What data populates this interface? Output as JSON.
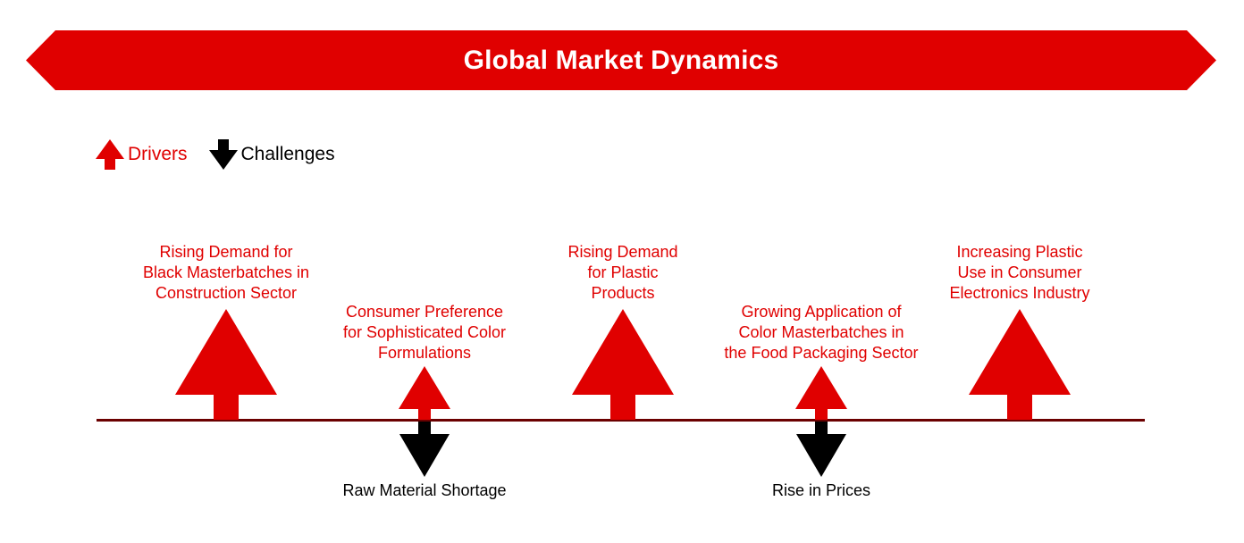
{
  "banner": {
    "title": "Global Market Dynamics"
  },
  "legend": {
    "drivers_label": "Drivers",
    "challenges_label": "Challenges"
  },
  "colors": {
    "accent": "#e00000",
    "axis": "#6b0000",
    "challenge": "#000000"
  },
  "drivers": [
    {
      "lines": [
        "Rising Demand for",
        "Black Masterbatches in",
        "Construction Sector"
      ],
      "size": "large"
    },
    {
      "lines": [
        "Consumer Preference",
        "for Sophisticated Color",
        "Formulations"
      ],
      "size": "small"
    },
    {
      "lines": [
        "Rising Demand",
        "for Plastic",
        "Products"
      ],
      "size": "large"
    },
    {
      "lines": [
        "Growing Application of",
        "Color Masterbatches in",
        "the Food Packaging Sector"
      ],
      "size": "small"
    },
    {
      "lines": [
        "Increasing Plastic",
        "Use in Consumer",
        "Electronics Industry"
      ],
      "size": "large"
    }
  ],
  "challenges": [
    {
      "label": "Raw Material Shortage"
    },
    {
      "label": "Rise in Prices"
    }
  ]
}
